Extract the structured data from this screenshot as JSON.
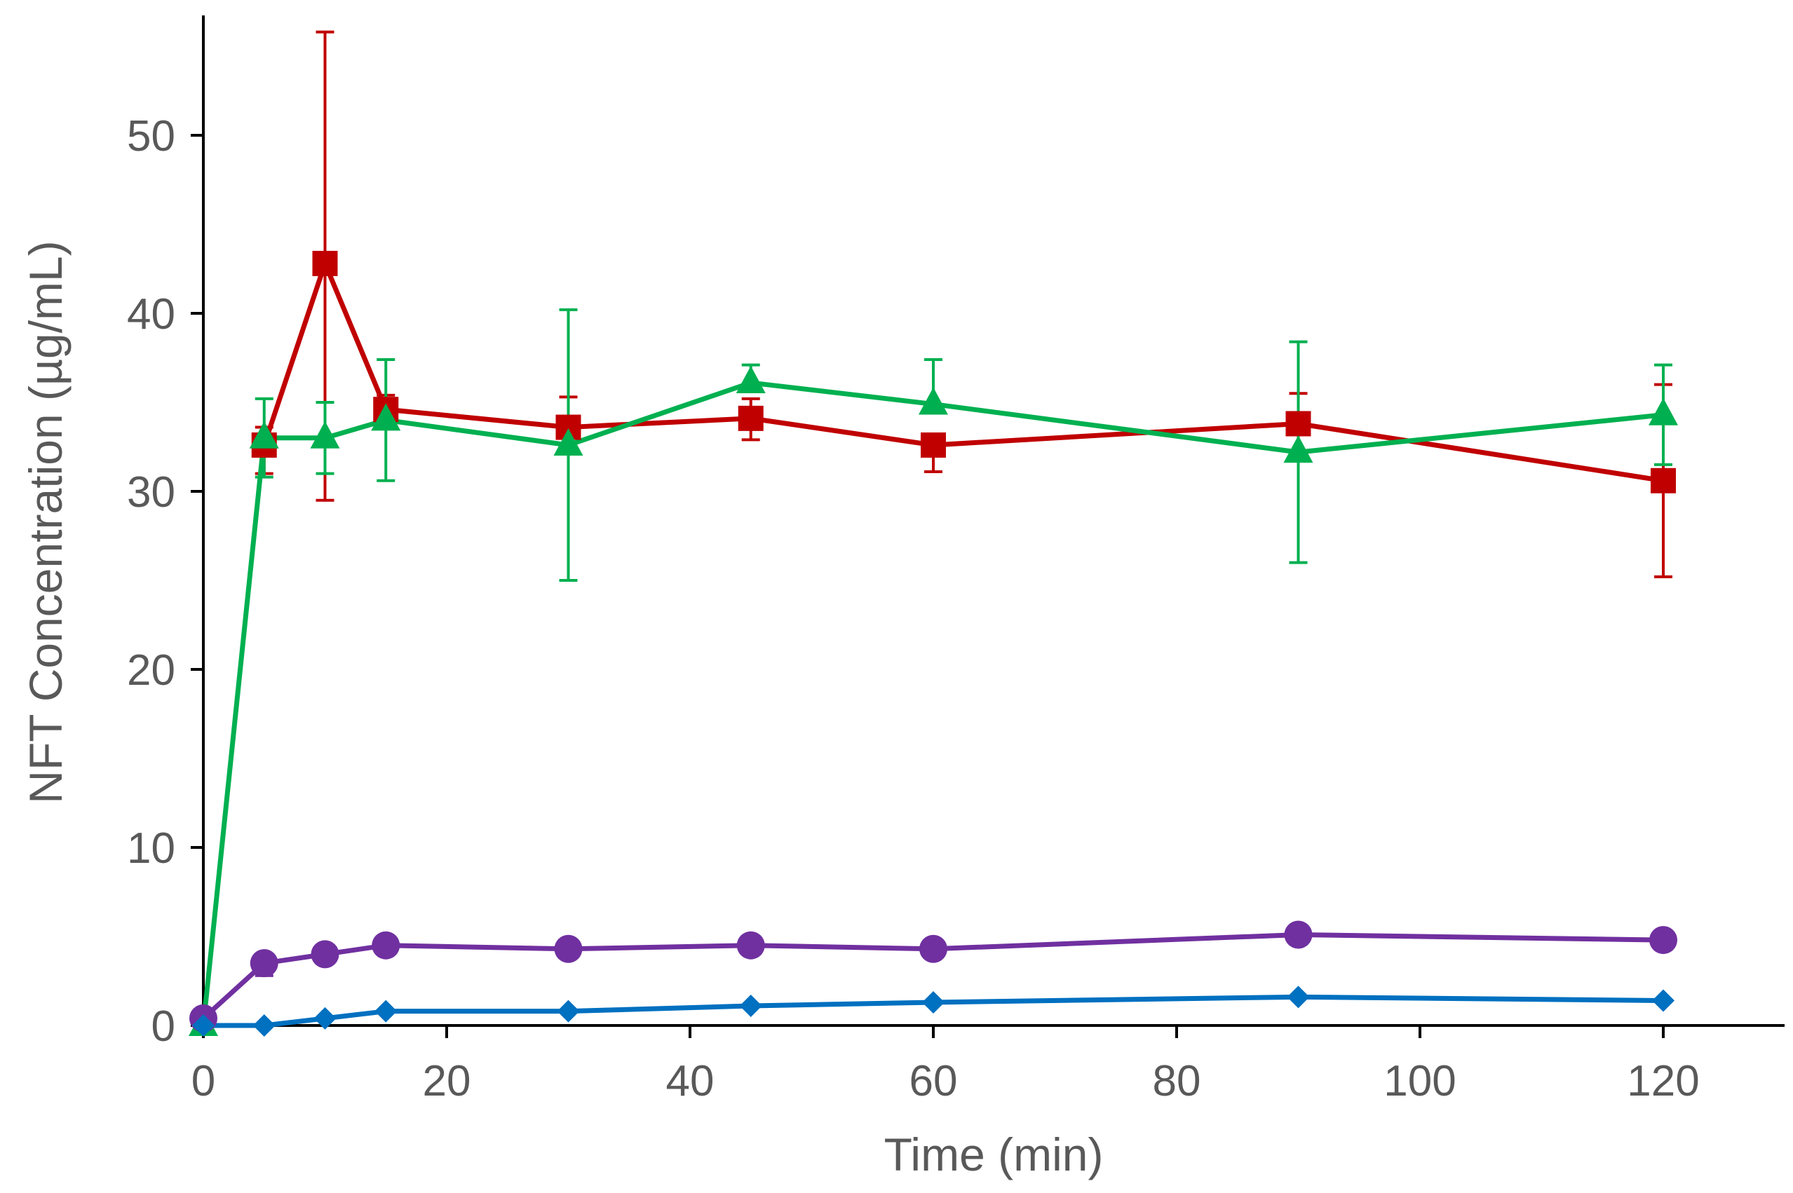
{
  "chart_data": {
    "type": "line",
    "title": "",
    "xlabel": "Time (min)",
    "ylabel": "NFT Concentration (µg/mL)",
    "xlim": [
      -1.5,
      130
    ],
    "ylim": [
      0,
      57
    ],
    "xticks": [
      0,
      20,
      40,
      60,
      80,
      100,
      120
    ],
    "yticks": [
      0,
      10,
      20,
      30,
      40,
      50
    ],
    "legend": "none",
    "grid": false,
    "series": [
      {
        "name": "red-square",
        "color": "#C00000",
        "marker": "square",
        "x": [
          5,
          10,
          15,
          30,
          45,
          60,
          90,
          120
        ],
        "y": [
          32.6,
          42.8,
          34.6,
          33.6,
          34.1,
          32.6,
          33.8,
          30.6
        ],
        "err_up": [
          1.0,
          13.0,
          0.8,
          1.7,
          1.1,
          0.0,
          1.7,
          5.4
        ],
        "err_down": [
          1.6,
          13.3,
          0.0,
          0.0,
          1.2,
          1.5,
          0.0,
          5.4
        ]
      },
      {
        "name": "green-triangle",
        "color": "#00B050",
        "marker": "triangle",
        "x": [
          0,
          5,
          10,
          15,
          30,
          45,
          60,
          90,
          120
        ],
        "y": [
          0,
          33.0,
          33.0,
          34.0,
          32.6,
          36.1,
          34.9,
          32.2,
          34.3
        ],
        "err_up": [
          0,
          2.2,
          2.0,
          3.4,
          7.6,
          1.0,
          2.5,
          6.2,
          2.8
        ],
        "err_down": [
          0,
          2.2,
          2.0,
          3.4,
          7.6,
          0.0,
          0.0,
          6.2,
          2.8
        ]
      },
      {
        "name": "purple-circle",
        "color": "#7030A0",
        "marker": "circle",
        "x": [
          0,
          5,
          10,
          15,
          30,
          45,
          60,
          90,
          120
        ],
        "y": [
          0.4,
          3.5,
          4.0,
          4.5,
          4.3,
          4.5,
          4.3,
          5.1,
          4.8
        ],
        "err_up": [
          0,
          0,
          0,
          0,
          0,
          0,
          0,
          0,
          0
        ],
        "err_down": [
          0,
          0.7,
          0,
          0,
          0,
          0,
          0,
          0,
          0
        ]
      },
      {
        "name": "blue-diamond",
        "color": "#0070C0",
        "marker": "diamond",
        "x": [
          0,
          5,
          10,
          15,
          30,
          45,
          60,
          90,
          120
        ],
        "y": [
          0,
          0,
          0.4,
          0.8,
          0.8,
          1.1,
          1.3,
          1.6,
          1.4
        ],
        "err_up": [
          0,
          0,
          0,
          0,
          0,
          0,
          0,
          0,
          0
        ],
        "err_down": [
          0,
          0,
          0,
          0,
          0,
          0,
          0,
          0,
          0
        ]
      }
    ]
  }
}
